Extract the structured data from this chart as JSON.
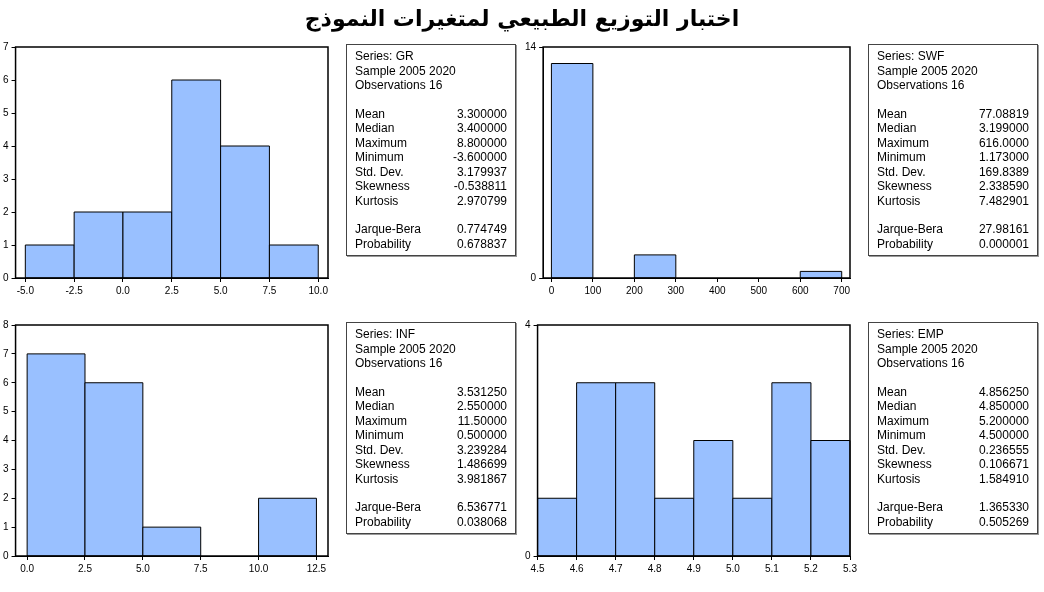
{
  "chart_data": [
    {
      "type": "histogram",
      "title": "اختبار التوزيع الطبيعي لمتغيرات النموذج",
      "bins": [
        -5,
        -2.5,
        0,
        2.5,
        5,
        7.5,
        10
      ],
      "values": [
        1,
        2,
        2,
        6,
        4,
        1
      ],
      "color": "#99c0ff",
      "xlim": [
        -5.5,
        10.5
      ],
      "xticks": [
        {
          "value": -5,
          "label": "-5.0"
        },
        {
          "value": -2.5,
          "label": "-2.5"
        },
        {
          "value": 0,
          "label": "0.0"
        },
        {
          "value": 2.5,
          "label": "2.5"
        },
        {
          "value": 5,
          "label": "5.0"
        },
        {
          "value": 7.5,
          "label": "7.5"
        },
        {
          "value": 10,
          "label": "10.0"
        }
      ],
      "ylim": [
        0,
        7
      ],
      "yticks": [
        0,
        1,
        2,
        3,
        4,
        5,
        6,
        7
      ],
      "annotations": [
        "Series: GR",
        "Sample 2005 2020",
        "Observations 16",
        "Mean 3.300000",
        "Median 3.400000",
        "Maximum 8.800000",
        "Minimum -3.600000",
        "Std. Dev. 3.179937",
        "Skewness -0.538811",
        "Kurtosis 2.970799",
        "Jarque-Bera 0.774749",
        "Probability 0.678837"
      ]
    },
    {
      "type": "histogram",
      "bins": [
        0,
        100,
        200,
        300,
        400,
        500,
        600,
        700
      ],
      "values": [
        13,
        0,
        1.4,
        0,
        0,
        0,
        0.4
      ],
      "color": "#99c0ff",
      "xlim": [
        -20,
        720
      ],
      "xticks": [
        0,
        100,
        200,
        300,
        400,
        500,
        600,
        700
      ],
      "ylim": [
        0,
        14
      ],
      "yticks": [
        0,
        14
      ],
      "annotations": [
        "Series: SWF",
        "Sample 2005 2020",
        "Observations 16",
        "Mean 77.08819",
        "Median 3.199000",
        "Maximum 616.0000",
        "Minimum 1.173000",
        "Std. Dev. 169.8389",
        "Skewness 2.338590",
        "Kurtosis 7.482901",
        "Jarque-Bera 27.98161",
        "Probability 0.000001"
      ]
    },
    {
      "type": "histogram",
      "bins": [
        0,
        2.5,
        5,
        7.5,
        10,
        12.5
      ],
      "values": [
        7,
        6,
        1,
        0,
        2
      ],
      "color": "#99c0ff",
      "xlim": [
        -0.5,
        13
      ],
      "xticks": [
        {
          "value": 0,
          "label": "0.0"
        },
        {
          "value": 2.5,
          "label": "2.5"
        },
        {
          "value": 5,
          "label": "5.0"
        },
        {
          "value": 7.5,
          "label": "7.5"
        },
        {
          "value": 10,
          "label": "10.0"
        },
        {
          "value": 12.5,
          "label": "12.5"
        }
      ],
      "ylim": [
        0,
        8
      ],
      "yticks": [
        0,
        1,
        2,
        3,
        4,
        5,
        6,
        7,
        8
      ],
      "annotations": [
        "Series: INF",
        "Sample 2005 2020",
        "Observations 16",
        "Mean 3.531250",
        "Median 2.550000",
        "Maximum 11.50000",
        "Minimum 0.500000",
        "Std. Dev. 3.239284",
        "Skewness 1.486699",
        "Kurtosis 3.981867",
        "Jarque-Bera 6.536771",
        "Probability 0.038068"
      ]
    },
    {
      "type": "histogram",
      "bins": [
        4.5,
        4.6,
        4.7,
        4.8,
        4.9,
        5.0,
        5.1,
        5.2,
        5.3
      ],
      "values": [
        1,
        3,
        3,
        1,
        2,
        1,
        3,
        2
      ],
      "color": "#99c0ff",
      "xlim": [
        4.5,
        5.3
      ],
      "xticks": [
        4.5,
        4.6,
        4.7,
        4.8,
        4.9,
        {
          "value": 5,
          "label": "5.0"
        },
        5.1,
        5.2,
        5.3
      ],
      "ylim": [
        0,
        4
      ],
      "yticks": [
        0,
        4
      ],
      "annotations": [
        "Series: EMP",
        "Sample 2005 2020",
        "Observations 16",
        "Mean 4.856250",
        "Median 4.850000",
        "Maximum 5.200000",
        "Minimum 4.500000",
        "Std. Dev. 0.236555",
        "Skewness 0.106671",
        "Kurtosis 1.584910",
        "Jarque-Bera 1.365330",
        "Probability 0.505269"
      ]
    }
  ]
}
